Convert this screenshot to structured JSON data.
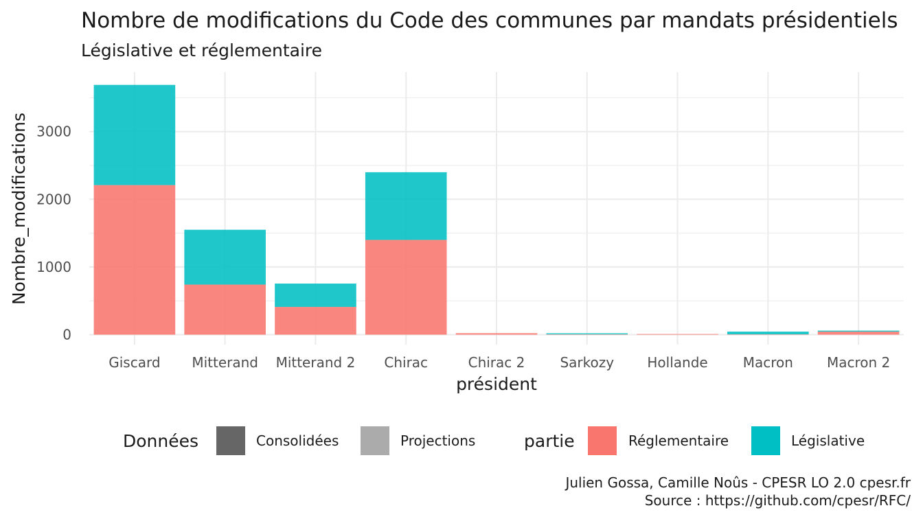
{
  "chart_data": {
    "type": "bar",
    "stacked": true,
    "title": "Nombre de modifications du Code des communes par mandats présidentiels",
    "subtitle": "Législative et réglementaire",
    "xlabel": "président",
    "ylabel": "Nombre_modifications",
    "categories": [
      "Giscard",
      "Mitterand",
      "Mitterand 2",
      "Chirac",
      "Chirac 2",
      "Sarkozy",
      "Hollande",
      "Macron",
      "Macron 2"
    ],
    "series": [
      {
        "name": "Réglementaire",
        "color": "#F8766D",
        "values": [
          2210,
          740,
          410,
          1400,
          22,
          5,
          10,
          5,
          45
        ]
      },
      {
        "name": "Législative",
        "color": "#00BFC4",
        "values": [
          1480,
          810,
          345,
          1000,
          0,
          15,
          0,
          40,
          15
        ]
      }
    ],
    "ylim": [
      0,
      3700
    ],
    "yticks": [
      0,
      1000,
      2000,
      3000
    ],
    "grid": true,
    "legend_position": "bottom",
    "legends": [
      {
        "title": "Données",
        "items": [
          {
            "label": "Consolidées",
            "color": "#666666"
          },
          {
            "label": "Projections",
            "color": "#ABABAB"
          }
        ]
      },
      {
        "title": "partie",
        "items": [
          {
            "label": "Réglementaire",
            "color": "#F8766D"
          },
          {
            "label": "Législative",
            "color": "#00BFC4"
          }
        ]
      }
    ],
    "caption": [
      "Julien Gossa, Camille Noûs - CPESR LO 2.0 cpesr.fr",
      "Source : https://github.com/cpesr/RFC/"
    ]
  }
}
